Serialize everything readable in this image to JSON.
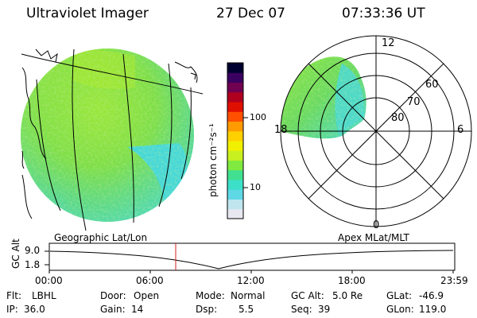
{
  "header": {
    "instrument": "Ultraviolet Imager",
    "date": "27 Dec 07",
    "time": "07:33:36 UT"
  },
  "colorbar": {
    "unit_label": "photon cm⁻²s⁻¹",
    "ticks": [
      "100",
      "10"
    ],
    "colors": [
      "#e8e8f0",
      "#bfe6ee",
      "#5fd8e6",
      "#3ce0c8",
      "#40e090",
      "#80ea40",
      "#c8f020",
      "#f0f000",
      "#ffd000",
      "#ff9a00",
      "#ff5000",
      "#e01000",
      "#b00020",
      "#700050",
      "#3a0060",
      "#000030"
    ]
  },
  "geo_map": {
    "label": "Geographic Lat/Lon"
  },
  "polar_map": {
    "label": "Apex MLat/MLT",
    "mlt_labels": {
      "top": "12",
      "left": "18",
      "right": "6",
      "bottom": "0"
    },
    "lat_labels": [
      "60",
      "70",
      "80"
    ]
  },
  "altitude_plot": {
    "ylabel": "GC Alt",
    "yticks": [
      "9.0",
      "1.8"
    ],
    "xticks": [
      "00:00",
      "06:00",
      "12:00",
      "18:00",
      "23:59"
    ],
    "current_time_marker": "07:33"
  },
  "status": {
    "filter_label": "Flt:",
    "filter_value": "LBHL",
    "door_label": "Door:",
    "door_value": "Open",
    "mode_label": "Mode:",
    "mode_value": "Normal",
    "gcalt_label": "GC Alt:",
    "gcalt_value": "5.0 Re",
    "glat_label": "GLat:",
    "glat_value": "-46.9",
    "ip_label": "IP:",
    "ip_value": "36.0",
    "gain_label": "Gain:",
    "gain_value": "14",
    "dsp_label": "Dsp:",
    "dsp_value": "5.5",
    "seq_label": "Seq:",
    "seq_value": "39",
    "glon_label": "GLon:",
    "glon_value": "119.0"
  }
}
